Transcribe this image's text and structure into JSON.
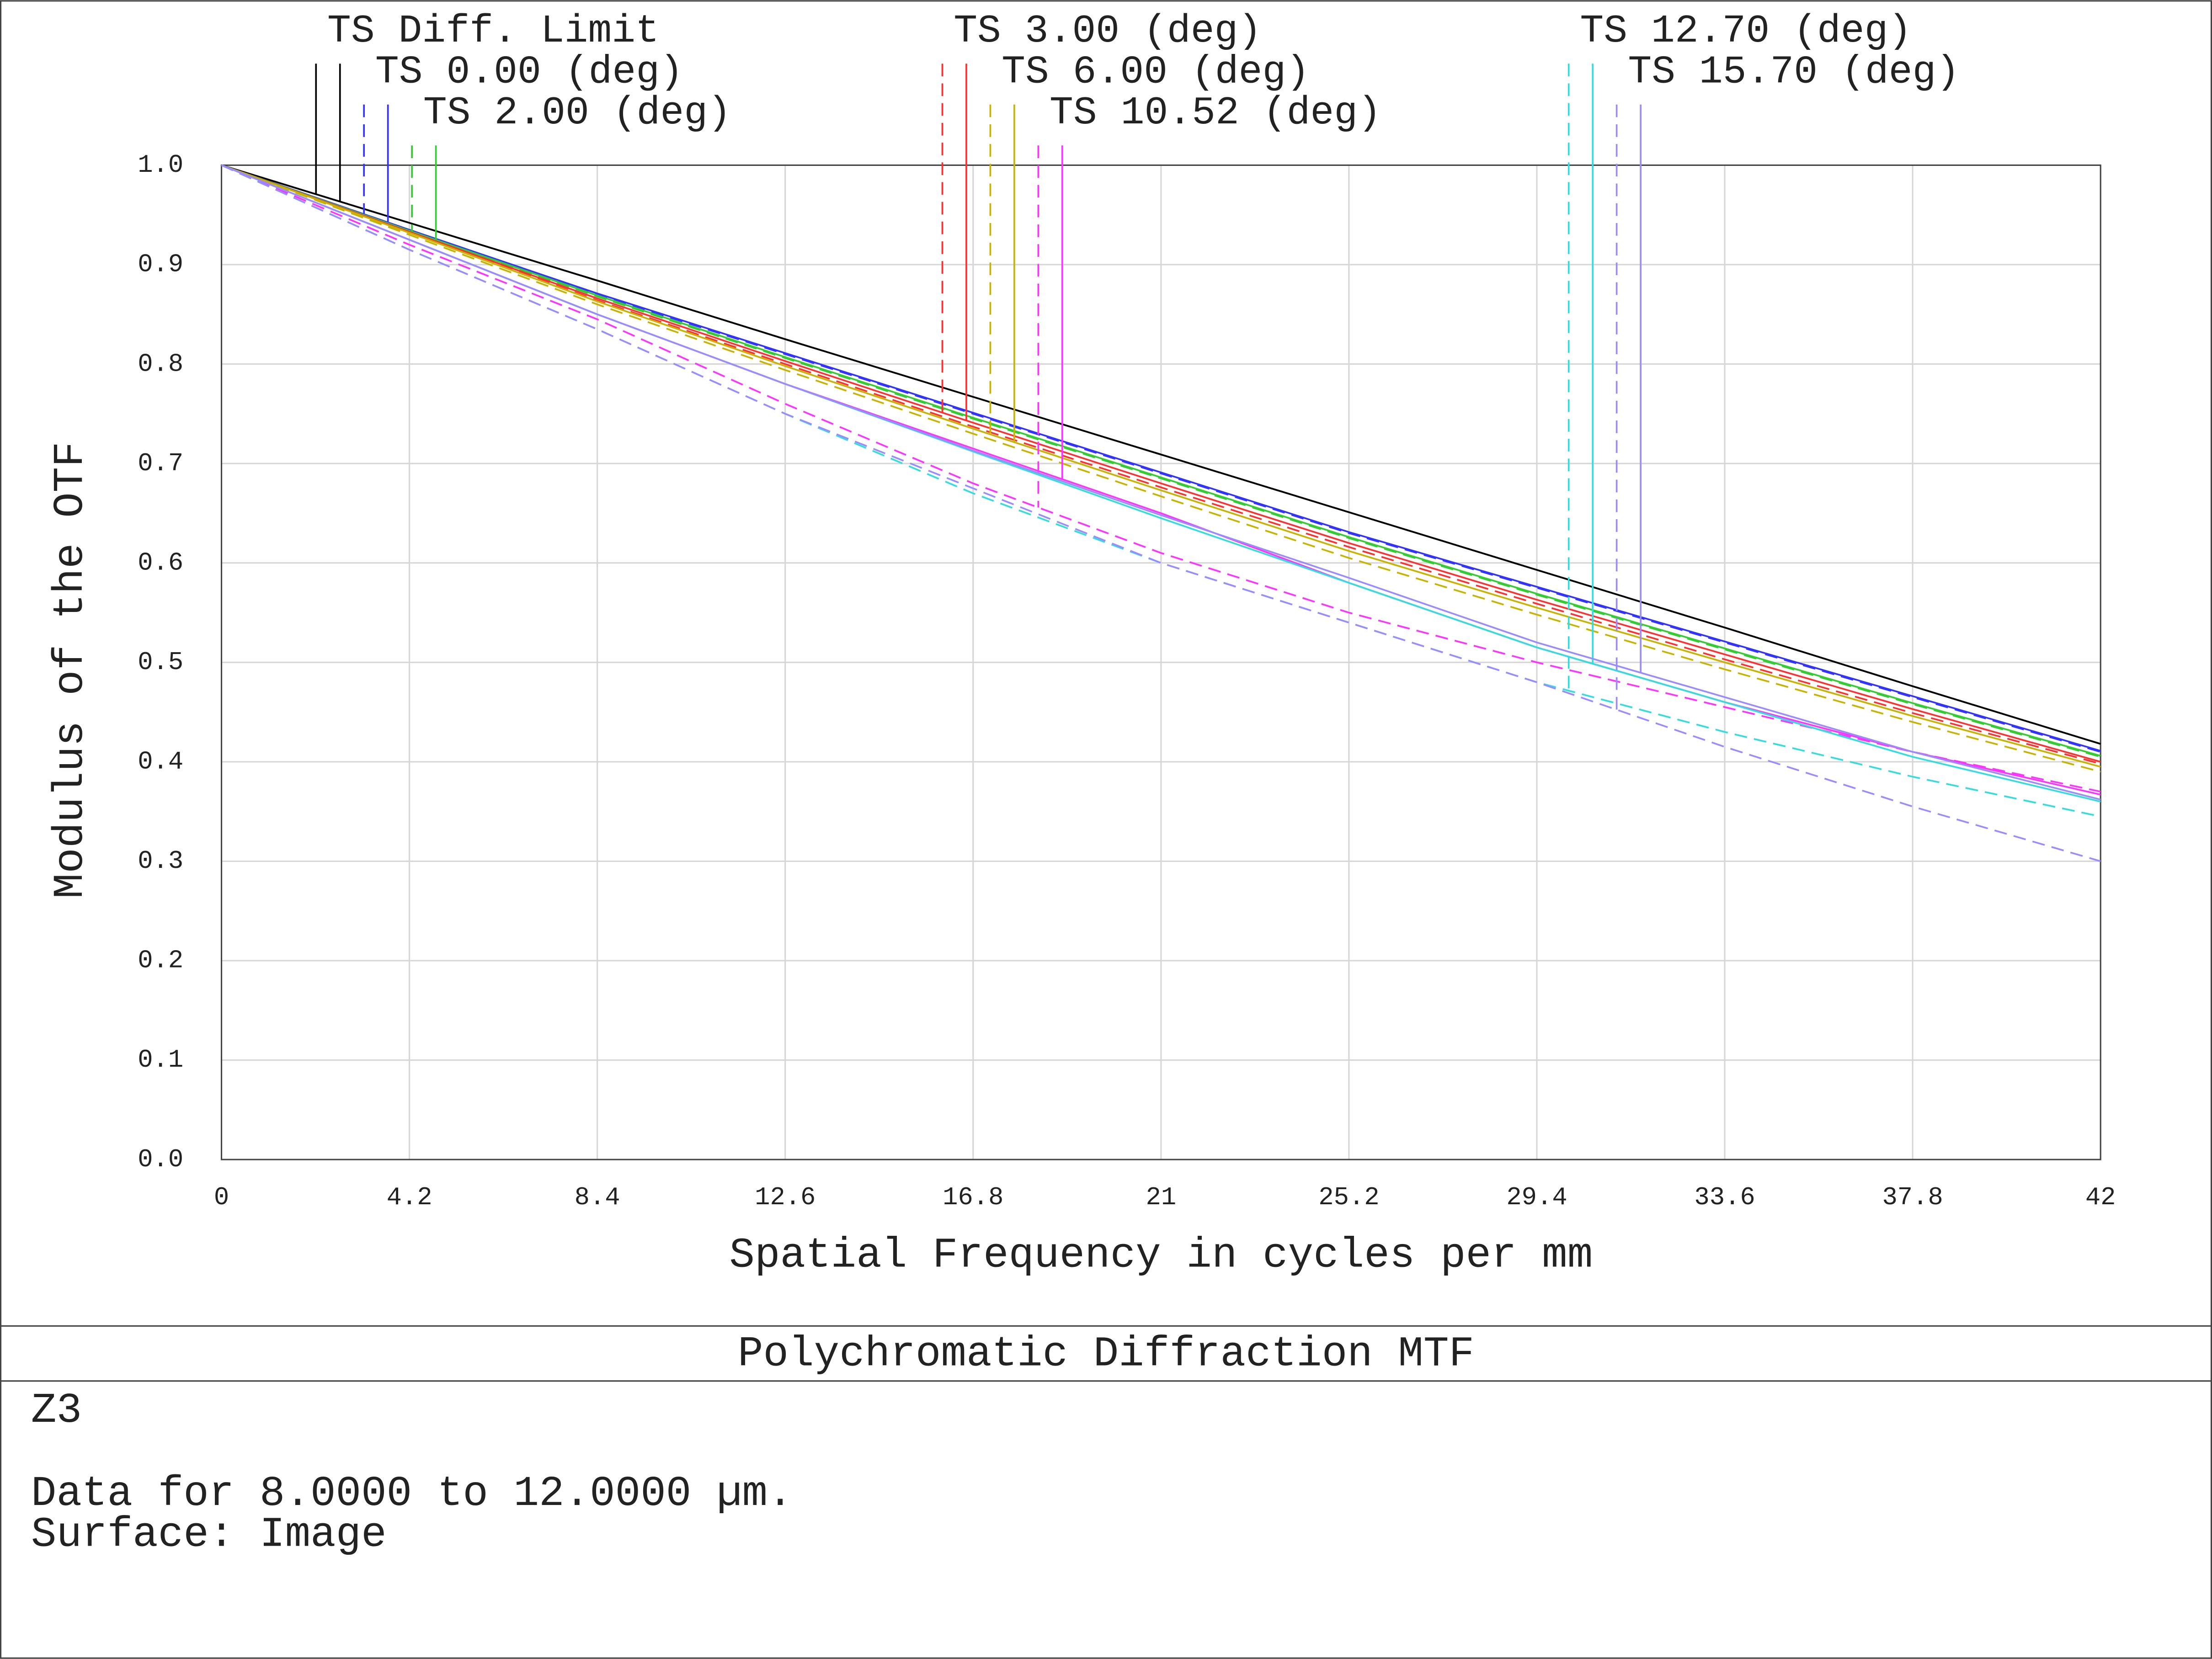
{
  "chart_data": {
    "type": "line",
    "title": "Polychromatic Diffraction MTF",
    "x_label": "Spatial Frequency in cycles per mm",
    "y_label": "Modulus of the OTF",
    "x": [
      0,
      4.2,
      8.4,
      12.6,
      16.8,
      21,
      25.2,
      29.4,
      33.6,
      37.8,
      42
    ],
    "xlim": [
      0,
      42
    ],
    "ylim": [
      0,
      1
    ],
    "xticks": [
      0,
      4.2,
      8.4,
      12.6,
      16.8,
      21,
      25.2,
      29.4,
      33.6,
      37.8,
      42
    ],
    "yticks": [
      {
        "value": 0,
        "label": "0.0"
      },
      {
        "value": 0.1,
        "label": "0.1"
      },
      {
        "value": 0.2,
        "label": "0.2"
      },
      {
        "value": 0.3,
        "label": "0.3"
      },
      {
        "value": 0.4,
        "label": "0.4"
      },
      {
        "value": 0.5,
        "label": "0.5"
      },
      {
        "value": 0.6,
        "label": "0.6"
      },
      {
        "value": 0.7,
        "label": "0.7"
      },
      {
        "value": 0.8,
        "label": "0.8"
      },
      {
        "value": 0.9,
        "label": "0.9"
      },
      {
        "value": 1,
        "label": "1.0"
      }
    ],
    "grid": true,
    "series": [
      {
        "name": "TS Diff. Limit",
        "color": "#000000",
        "lines": [
          {
            "dash": false,
            "values": [
              1,
              0.942,
              0.884,
              0.825,
              0.767,
              0.709,
              0.651,
              0.593,
              0.535,
              0.476,
              0.418
            ]
          },
          {
            "dash": false,
            "values": [
              1,
              0.942,
              0.884,
              0.825,
              0.767,
              0.709,
              0.651,
              0.593,
              0.535,
              0.476,
              0.418
            ]
          }
        ]
      },
      {
        "name": "TS 0.00 (deg)",
        "color": "#3333ff",
        "lines": [
          {
            "dash": true,
            "values": [
              1,
              0.935,
              0.87,
              0.81,
              0.75,
              0.69,
              0.63,
              0.575,
              0.52,
              0.465,
              0.41
            ]
          },
          {
            "dash": false,
            "values": [
              1,
              0.935,
              0.871,
              0.811,
              0.751,
              0.691,
              0.631,
              0.576,
              0.521,
              0.466,
              0.411
            ]
          }
        ]
      },
      {
        "name": "TS 2.00 (deg)",
        "color": "#33cc33",
        "lines": [
          {
            "dash": true,
            "values": [
              1,
              0.934,
              0.868,
              0.806,
              0.745,
              0.685,
              0.625,
              0.568,
              0.513,
              0.458,
              0.405
            ]
          },
          {
            "dash": false,
            "values": [
              1,
              0.934,
              0.869,
              0.807,
              0.746,
              0.686,
              0.626,
              0.569,
              0.514,
              0.459,
              0.406
            ]
          }
        ]
      },
      {
        "name": "TS 3.00 (deg)",
        "color": "#ff3030",
        "lines": [
          {
            "dash": true,
            "values": [
              1,
              0.932,
              0.864,
              0.8,
              0.737,
              0.676,
              0.616,
              0.559,
              0.503,
              0.449,
              0.398
            ]
          },
          {
            "dash": false,
            "values": [
              1,
              0.933,
              0.866,
              0.803,
              0.741,
              0.68,
              0.62,
              0.563,
              0.508,
              0.453,
              0.4
            ]
          }
        ]
      },
      {
        "name": "TS 6.00 (deg)",
        "color": "#c8b400",
        "lines": [
          {
            "dash": true,
            "values": [
              1,
              0.93,
              0.86,
              0.794,
              0.73,
              0.667,
              0.605,
              0.548,
              0.493,
              0.44,
              0.39
            ]
          },
          {
            "dash": false,
            "values": [
              1,
              0.932,
              0.863,
              0.798,
              0.735,
              0.673,
              0.612,
              0.555,
              0.5,
              0.446,
              0.395
            ]
          }
        ]
      },
      {
        "name": "TS 10.52 (deg)",
        "color": "#ff33ff",
        "lines": [
          {
            "dash": true,
            "values": [
              1,
              0.92,
              0.845,
              0.76,
              0.68,
              0.61,
              0.55,
              0.5,
              0.455,
              0.41,
              0.37
            ]
          },
          {
            "dash": false,
            "values": [
              1,
              0.925,
              0.85,
              0.78,
              0.715,
              0.65,
              0.58,
              0.515,
              0.46,
              0.41,
              0.367
            ]
          }
        ]
      },
      {
        "name": "TS 12.70 (deg)",
        "color": "#33dddd",
        "lines": [
          {
            "dash": true,
            "values": [
              1,
              0.915,
              0.835,
              0.75,
              0.67,
              0.6,
              0.54,
              0.48,
              0.43,
              0.385,
              0.345
            ]
          },
          {
            "dash": false,
            "values": [
              1,
              0.925,
              0.85,
              0.78,
              0.712,
              0.645,
              0.58,
              0.515,
              0.46,
              0.405,
              0.36
            ]
          }
        ]
      },
      {
        "name": "TS 15.70 (deg)",
        "color": "#9a8cff",
        "lines": [
          {
            "dash": true,
            "values": [
              1,
              0.915,
              0.835,
              0.75,
              0.675,
              0.6,
              0.54,
              0.48,
              0.415,
              0.355,
              0.3
            ]
          },
          {
            "dash": false,
            "values": [
              1,
              0.925,
              0.85,
              0.78,
              0.713,
              0.648,
              0.585,
              0.52,
              0.465,
              0.41,
              0.362
            ]
          }
        ]
      }
    ],
    "notes": [
      "Z3",
      "Data for 8.0000 to 12.0000 µm.",
      "Surface: Image"
    ]
  }
}
